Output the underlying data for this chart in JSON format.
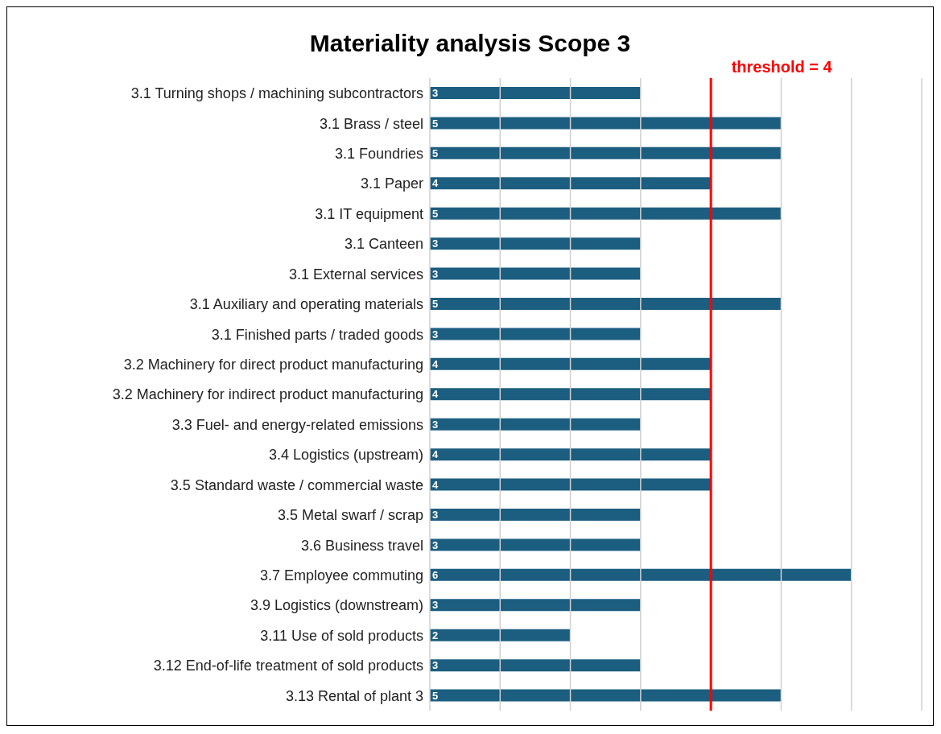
{
  "chart_data": {
    "type": "bar",
    "orientation": "horizontal",
    "title": "Materiality analysis Scope 3",
    "categories": [
      "3.1 Turning shops / machining subcontractors",
      "3.1 Brass / steel",
      "3.1 Foundries",
      "3.1 Paper",
      "3.1 IT equipment",
      "3.1 Canteen",
      "3.1 External services",
      "3.1 Auxiliary and operating materials",
      "3.1 Finished parts / traded goods",
      "3.2 Machinery for direct product manufacturing",
      "3.2 Machinery for indirect product manufacturing",
      "3.3 Fuel- and energy-related emissions",
      "3.4 Logistics (upstream)",
      "3.5 Standard waste / commercial waste",
      "3.5 Metal swarf / scrap",
      "3.6 Business travel",
      "3.7 Employee commuting",
      "3.9 Logistics (downstream)",
      "3.11 Use of sold products",
      "3.12 End-of-life treatment of sold products",
      "3.13 Rental of plant 3"
    ],
    "values": [
      3,
      5,
      5,
      4,
      5,
      3,
      3,
      5,
      3,
      4,
      4,
      3,
      4,
      4,
      3,
      3,
      6,
      3,
      2,
      3,
      5
    ],
    "color": "#1b5e80",
    "data_labels": true,
    "xlim": [
      0,
      7
    ],
    "xticks": [
      {
        "value": 0,
        "label": null
      },
      {
        "value": 1,
        "label": null
      },
      {
        "value": 2,
        "label": null
      },
      {
        "value": 3,
        "label": null
      },
      {
        "value": 4,
        "label": null
      },
      {
        "value": 5,
        "label": null
      },
      {
        "value": 6,
        "label": null
      },
      {
        "value": 7,
        "label": null
      }
    ],
    "tick_labels": "y",
    "grid": "x",
    "ref_lines": [
      {
        "axis": "x",
        "value": 4,
        "label": "threshold = 4",
        "color": "#ff0000"
      }
    ]
  }
}
